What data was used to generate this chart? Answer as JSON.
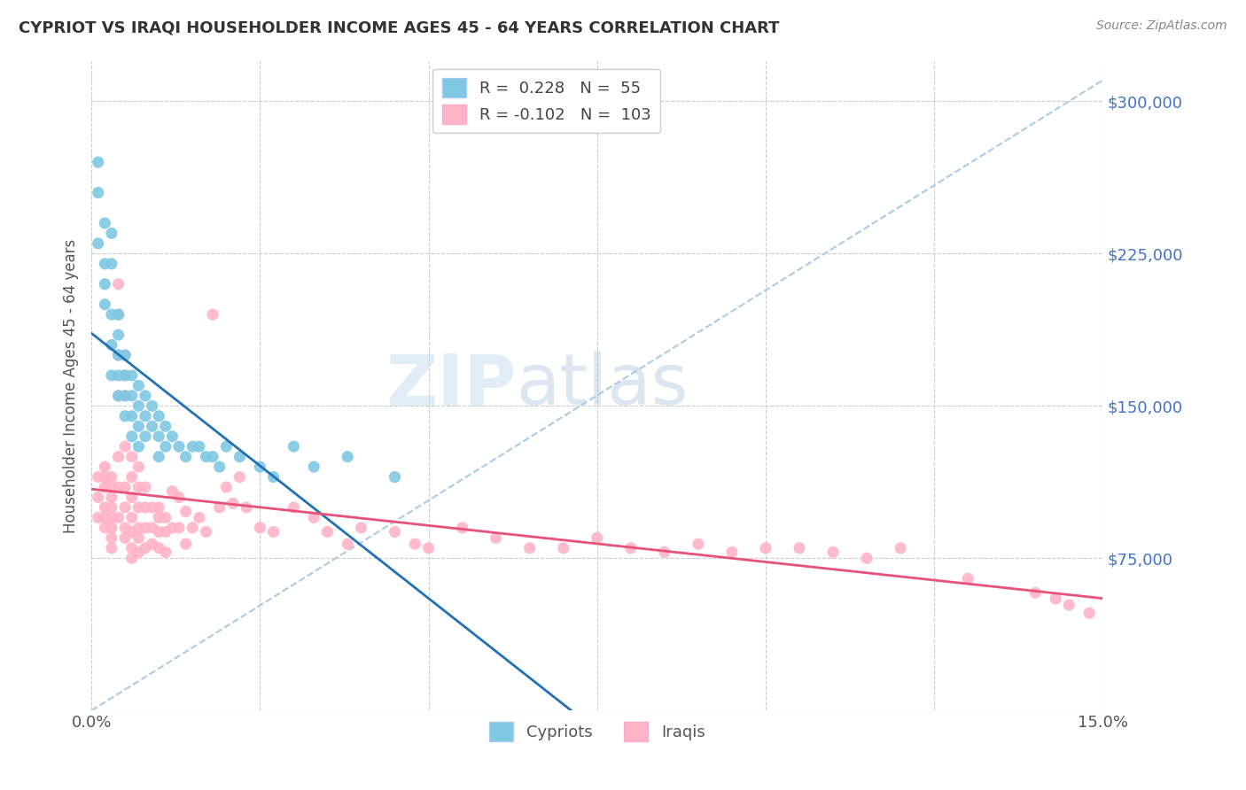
{
  "title": "CYPRIOT VS IRAQI HOUSEHOLDER INCOME AGES 45 - 64 YEARS CORRELATION CHART",
  "source": "Source: ZipAtlas.com",
  "ylabel": "Householder Income Ages 45 - 64 years",
  "x_min": 0.0,
  "x_max": 0.15,
  "y_min": 0,
  "y_max": 320000,
  "x_ticks": [
    0.0,
    0.025,
    0.05,
    0.075,
    0.1,
    0.125,
    0.15
  ],
  "y_ticks": [
    0,
    75000,
    150000,
    225000,
    300000
  ],
  "cypriot_color": "#7ec8e3",
  "iraqi_color": "#ffb3c6",
  "cypriot_line_color": "#2171b5",
  "iraqi_line_color": "#e8527a",
  "dashed_line_color": "#a8cce8",
  "R_cypriot": 0.228,
  "N_cypriot": 55,
  "R_iraqi": -0.102,
  "N_iraqi": 103,
  "watermark_zip": "ZIP",
  "watermark_atlas": "atlas",
  "legend_label_cypriot": "Cypriots",
  "legend_label_iraqi": "Iraqis",
  "cypriot_x": [
    0.001,
    0.001,
    0.001,
    0.002,
    0.002,
    0.002,
    0.002,
    0.003,
    0.003,
    0.003,
    0.003,
    0.003,
    0.004,
    0.004,
    0.004,
    0.004,
    0.004,
    0.005,
    0.005,
    0.005,
    0.005,
    0.006,
    0.006,
    0.006,
    0.006,
    0.007,
    0.007,
    0.007,
    0.007,
    0.008,
    0.008,
    0.008,
    0.009,
    0.009,
    0.01,
    0.01,
    0.01,
    0.011,
    0.011,
    0.012,
    0.013,
    0.014,
    0.015,
    0.016,
    0.017,
    0.018,
    0.019,
    0.02,
    0.022,
    0.025,
    0.027,
    0.03,
    0.033,
    0.038,
    0.045
  ],
  "cypriot_y": [
    270000,
    255000,
    230000,
    240000,
    220000,
    210000,
    200000,
    235000,
    220000,
    195000,
    180000,
    165000,
    195000,
    185000,
    175000,
    165000,
    155000,
    175000,
    165000,
    155000,
    145000,
    165000,
    155000,
    145000,
    135000,
    160000,
    150000,
    140000,
    130000,
    155000,
    145000,
    135000,
    150000,
    140000,
    145000,
    135000,
    125000,
    140000,
    130000,
    135000,
    130000,
    125000,
    130000,
    130000,
    125000,
    125000,
    120000,
    130000,
    125000,
    120000,
    115000,
    130000,
    120000,
    125000,
    115000
  ],
  "iraqi_x": [
    0.001,
    0.001,
    0.001,
    0.002,
    0.002,
    0.002,
    0.002,
    0.002,
    0.002,
    0.003,
    0.003,
    0.003,
    0.003,
    0.003,
    0.003,
    0.003,
    0.003,
    0.004,
    0.004,
    0.004,
    0.004,
    0.004,
    0.004,
    0.004,
    0.005,
    0.005,
    0.005,
    0.005,
    0.005,
    0.005,
    0.005,
    0.005,
    0.006,
    0.006,
    0.006,
    0.006,
    0.006,
    0.006,
    0.006,
    0.007,
    0.007,
    0.007,
    0.007,
    0.007,
    0.007,
    0.008,
    0.008,
    0.008,
    0.008,
    0.009,
    0.009,
    0.009,
    0.01,
    0.01,
    0.01,
    0.01,
    0.011,
    0.011,
    0.011,
    0.012,
    0.012,
    0.013,
    0.013,
    0.014,
    0.014,
    0.015,
    0.016,
    0.017,
    0.018,
    0.019,
    0.02,
    0.021,
    0.022,
    0.023,
    0.025,
    0.027,
    0.03,
    0.033,
    0.035,
    0.038,
    0.04,
    0.045,
    0.048,
    0.05,
    0.055,
    0.06,
    0.065,
    0.07,
    0.075,
    0.08,
    0.085,
    0.09,
    0.095,
    0.1,
    0.105,
    0.11,
    0.115,
    0.12,
    0.13,
    0.14,
    0.143,
    0.145,
    0.148
  ],
  "iraqi_y": [
    115000,
    105000,
    95000,
    120000,
    115000,
    110000,
    100000,
    95000,
    90000,
    115000,
    110000,
    105000,
    100000,
    95000,
    90000,
    85000,
    80000,
    210000,
    195000,
    175000,
    155000,
    125000,
    110000,
    95000,
    175000,
    165000,
    155000,
    130000,
    110000,
    100000,
    90000,
    85000,
    125000,
    115000,
    105000,
    95000,
    88000,
    80000,
    75000,
    120000,
    110000,
    100000,
    90000,
    85000,
    78000,
    110000,
    100000,
    90000,
    80000,
    100000,
    90000,
    82000,
    100000,
    95000,
    88000,
    80000,
    95000,
    88000,
    78000,
    108000,
    90000,
    105000,
    90000,
    98000,
    82000,
    90000,
    95000,
    88000,
    195000,
    100000,
    110000,
    102000,
    115000,
    100000,
    90000,
    88000,
    100000,
    95000,
    88000,
    82000,
    90000,
    88000,
    82000,
    80000,
    90000,
    85000,
    80000,
    80000,
    85000,
    80000,
    78000,
    82000,
    78000,
    80000,
    80000,
    78000,
    75000,
    80000,
    65000,
    58000,
    55000,
    52000,
    48000
  ]
}
